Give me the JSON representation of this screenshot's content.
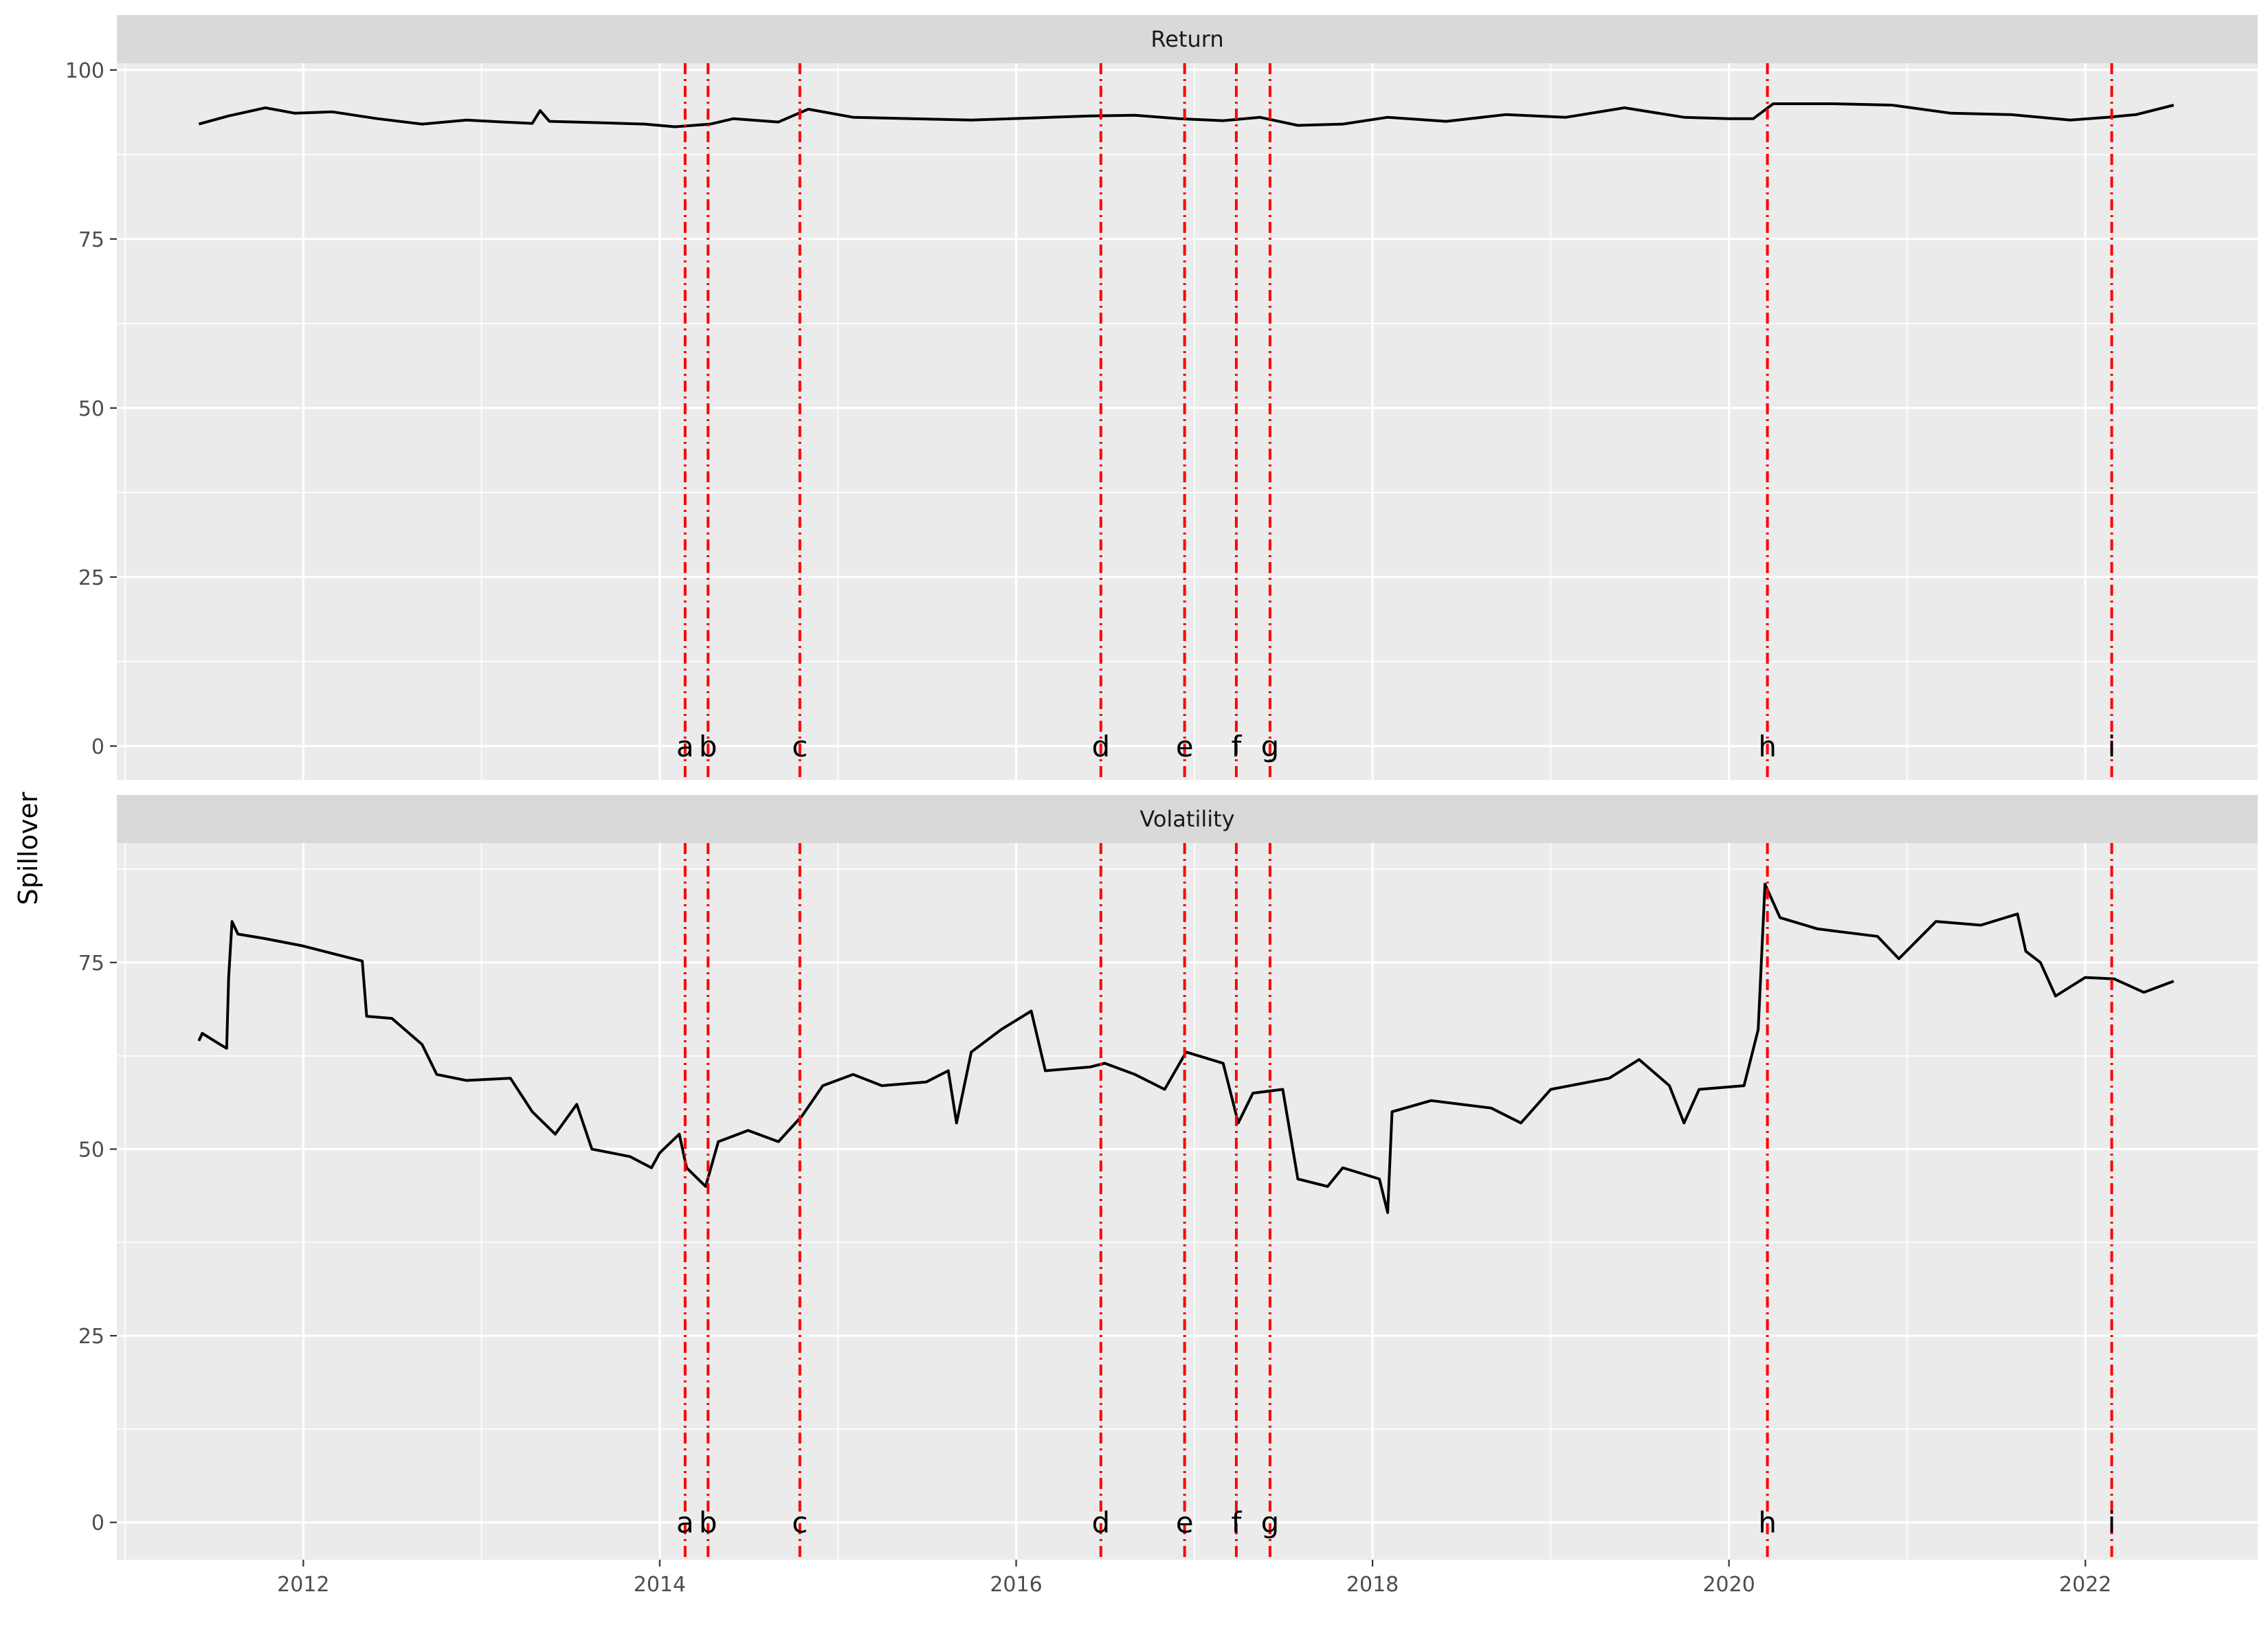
{
  "chart_data": {
    "type": "line",
    "title": "",
    "xlabel": "",
    "ylabel": "Spillover",
    "x_ticks": [
      "2012",
      "2014",
      "2016",
      "2018",
      "2020",
      "2022"
    ],
    "y_ticks": [
      "0",
      "25",
      "50",
      "75",
      "100"
    ],
    "xlim": [
      "2010-12-15",
      "2022-12-20"
    ],
    "grid": true,
    "legend": "none",
    "colors": {
      "series": "#000000",
      "events": "#ff0000",
      "panel": "#ebebeb",
      "strip": "#d9d9d9"
    },
    "events": [
      {
        "label": "a",
        "date": "2014-02-22"
      },
      {
        "label": "b",
        "date": "2014-04-10"
      },
      {
        "label": "c",
        "date": "2014-10-15"
      },
      {
        "label": "d",
        "date": "2016-06-23"
      },
      {
        "label": "e",
        "date": "2016-12-12"
      },
      {
        "label": "f",
        "date": "2017-03-28"
      },
      {
        "label": "g",
        "date": "2017-06-05"
      },
      {
        "label": "h",
        "date": "2020-03-20"
      },
      {
        "label": "i",
        "date": "2022-02-24"
      }
    ],
    "panels": [
      {
        "name": "Return",
        "ylim": [
          -5,
          101
        ],
        "y_ticks": [
          0,
          25,
          50,
          75,
          100
        ],
        "points": [
          [
            "2011-06-01",
            92.0
          ],
          [
            "2011-08-01",
            93.2
          ],
          [
            "2011-10-15",
            94.4
          ],
          [
            "2011-12-15",
            93.6
          ],
          [
            "2012-03-01",
            93.8
          ],
          [
            "2012-06-01",
            92.8
          ],
          [
            "2012-09-01",
            92.0
          ],
          [
            "2012-12-01",
            92.6
          ],
          [
            "2013-02-15",
            92.3
          ],
          [
            "2013-04-15",
            92.1
          ],
          [
            "2013-05-01",
            94.0
          ],
          [
            "2013-05-20",
            92.4
          ],
          [
            "2013-09-01",
            92.2
          ],
          [
            "2013-12-01",
            92.0
          ],
          [
            "2014-02-01",
            91.6
          ],
          [
            "2014-04-15",
            92.0
          ],
          [
            "2014-06-01",
            92.8
          ],
          [
            "2014-09-01",
            92.3
          ],
          [
            "2014-11-01",
            94.2
          ],
          [
            "2015-02-01",
            93.0
          ],
          [
            "2015-06-01",
            92.8
          ],
          [
            "2015-10-01",
            92.6
          ],
          [
            "2016-02-01",
            92.9
          ],
          [
            "2016-06-01",
            93.2
          ],
          [
            "2016-09-01",
            93.3
          ],
          [
            "2016-12-01",
            92.8
          ],
          [
            "2017-03-01",
            92.5
          ],
          [
            "2017-05-15",
            93.0
          ],
          [
            "2017-08-01",
            91.8
          ],
          [
            "2017-11-01",
            92.0
          ],
          [
            "2018-02-01",
            93.0
          ],
          [
            "2018-06-01",
            92.4
          ],
          [
            "2018-10-01",
            93.4
          ],
          [
            "2019-02-01",
            93.0
          ],
          [
            "2019-06-01",
            94.4
          ],
          [
            "2019-10-01",
            93.0
          ],
          [
            "2020-01-01",
            92.8
          ],
          [
            "2020-02-20",
            92.8
          ],
          [
            "2020-04-01",
            95.0
          ],
          [
            "2020-08-01",
            95.0
          ],
          [
            "2020-12-01",
            94.8
          ],
          [
            "2021-04-01",
            93.6
          ],
          [
            "2021-08-01",
            93.4
          ],
          [
            "2021-12-01",
            92.6
          ],
          [
            "2022-02-15",
            93.0
          ],
          [
            "2022-04-15",
            93.4
          ],
          [
            "2022-07-01",
            94.8
          ]
        ]
      },
      {
        "name": "Volatility",
        "ylim": [
          -5,
          91
        ],
        "y_ticks": [
          0,
          25,
          50,
          75
        ],
        "points": [
          [
            "2011-06-01",
            64.5
          ],
          [
            "2011-06-08",
            65.5
          ],
          [
            "2011-07-15",
            64.0
          ],
          [
            "2011-07-28",
            63.5
          ],
          [
            "2011-08-01",
            73.0
          ],
          [
            "2011-08-08",
            80.5
          ],
          [
            "2011-08-20",
            78.8
          ],
          [
            "2011-10-15",
            78.2
          ],
          [
            "2012-01-01",
            77.2
          ],
          [
            "2012-03-01",
            76.2
          ],
          [
            "2012-05-01",
            75.2
          ],
          [
            "2012-05-10",
            67.8
          ],
          [
            "2012-07-01",
            67.5
          ],
          [
            "2012-09-01",
            64.0
          ],
          [
            "2012-10-01",
            60.0
          ],
          [
            "2012-12-01",
            59.2
          ],
          [
            "2013-03-01",
            59.5
          ],
          [
            "2013-04-15",
            55.0
          ],
          [
            "2013-06-01",
            52.0
          ],
          [
            "2013-07-15",
            56.0
          ],
          [
            "2013-08-15",
            50.0
          ],
          [
            "2013-11-01",
            49.0
          ],
          [
            "2013-12-15",
            47.5
          ],
          [
            "2014-01-01",
            49.5
          ],
          [
            "2014-02-10",
            52.0
          ],
          [
            "2014-02-25",
            47.5
          ],
          [
            "2014-04-05",
            45.0
          ],
          [
            "2014-05-01",
            51.0
          ],
          [
            "2014-07-01",
            52.5
          ],
          [
            "2014-09-01",
            51.0
          ],
          [
            "2014-10-20",
            54.5
          ],
          [
            "2014-12-01",
            58.5
          ],
          [
            "2015-02-01",
            60.0
          ],
          [
            "2015-04-01",
            58.5
          ],
          [
            "2015-07-01",
            59.0
          ],
          [
            "2015-08-15",
            60.5
          ],
          [
            "2015-09-01",
            53.5
          ],
          [
            "2015-10-01",
            63.0
          ],
          [
            "2015-12-01",
            66.0
          ],
          [
            "2016-02-01",
            68.5
          ],
          [
            "2016-03-01",
            60.5
          ],
          [
            "2016-06-01",
            61.0
          ],
          [
            "2016-07-01",
            61.5
          ],
          [
            "2016-09-01",
            60.0
          ],
          [
            "2016-11-01",
            58.0
          ],
          [
            "2016-12-15",
            63.0
          ],
          [
            "2017-03-01",
            61.5
          ],
          [
            "2017-04-01",
            53.5
          ],
          [
            "2017-05-01",
            57.5
          ],
          [
            "2017-07-01",
            58.0
          ],
          [
            "2017-08-01",
            46.0
          ],
          [
            "2017-10-01",
            45.0
          ],
          [
            "2017-11-01",
            47.5
          ],
          [
            "2018-01-15",
            46.0
          ],
          [
            "2018-02-01",
            41.5
          ],
          [
            "2018-02-10",
            55.0
          ],
          [
            "2018-05-01",
            56.5
          ],
          [
            "2018-09-01",
            55.5
          ],
          [
            "2018-11-01",
            53.5
          ],
          [
            "2019-01-01",
            58.0
          ],
          [
            "2019-05-01",
            59.5
          ],
          [
            "2019-07-01",
            62.0
          ],
          [
            "2019-09-01",
            58.5
          ],
          [
            "2019-10-01",
            53.5
          ],
          [
            "2019-11-01",
            58.0
          ],
          [
            "2020-02-01",
            58.5
          ],
          [
            "2020-03-01",
            66.0
          ],
          [
            "2020-03-15",
            85.5
          ],
          [
            "2020-04-15",
            81.0
          ],
          [
            "2020-07-01",
            79.5
          ],
          [
            "2020-11-01",
            78.5
          ],
          [
            "2020-12-15",
            75.5
          ],
          [
            "2021-03-01",
            80.5
          ],
          [
            "2021-06-01",
            80.0
          ],
          [
            "2021-08-15",
            81.5
          ],
          [
            "2021-09-01",
            76.5
          ],
          [
            "2021-10-01",
            75.0
          ],
          [
            "2021-11-01",
            70.5
          ],
          [
            "2022-01-01",
            73.0
          ],
          [
            "2022-03-01",
            72.8
          ],
          [
            "2022-05-01",
            71.0
          ],
          [
            "2022-07-01",
            72.5
          ]
        ]
      }
    ]
  }
}
